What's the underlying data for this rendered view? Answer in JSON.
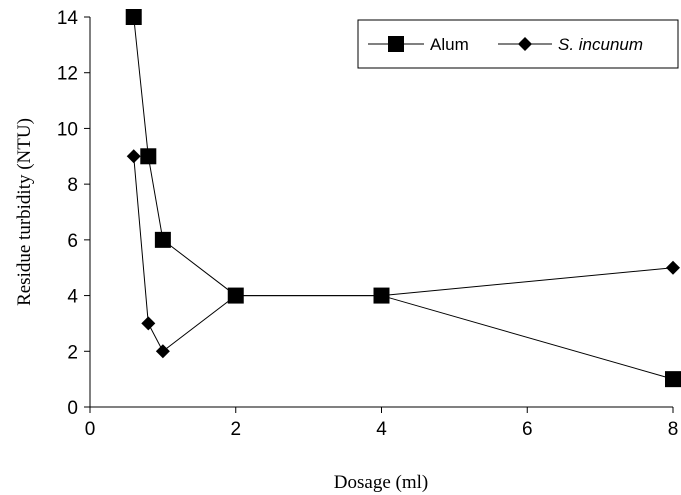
{
  "chart_data": {
    "type": "line",
    "title": "",
    "xlabel": "Dosage (ml)",
    "ylabel": "Residue turbidity (NTU)",
    "xlim": [
      0,
      8
    ],
    "ylim": [
      0,
      14
    ],
    "x_ticks": [
      "0",
      "2",
      "4",
      "6",
      "8"
    ],
    "y_ticks": [
      "0",
      "2",
      "4",
      "6",
      "8",
      "10",
      "12",
      "14"
    ],
    "grid": false,
    "legend_position": "top-right",
    "series": [
      {
        "name": "Alum",
        "marker": "square",
        "color": "#000000",
        "x": [
          0.6,
          0.8,
          1,
          2,
          4,
          8
        ],
        "y": [
          14,
          9,
          6,
          4,
          4,
          1
        ]
      },
      {
        "name": "S. incunum",
        "marker": "diamond",
        "color": "#000000",
        "x": [
          0.6,
          0.8,
          1,
          2,
          4,
          8
        ],
        "y": [
          9,
          3,
          2,
          4,
          4,
          5
        ]
      }
    ]
  }
}
